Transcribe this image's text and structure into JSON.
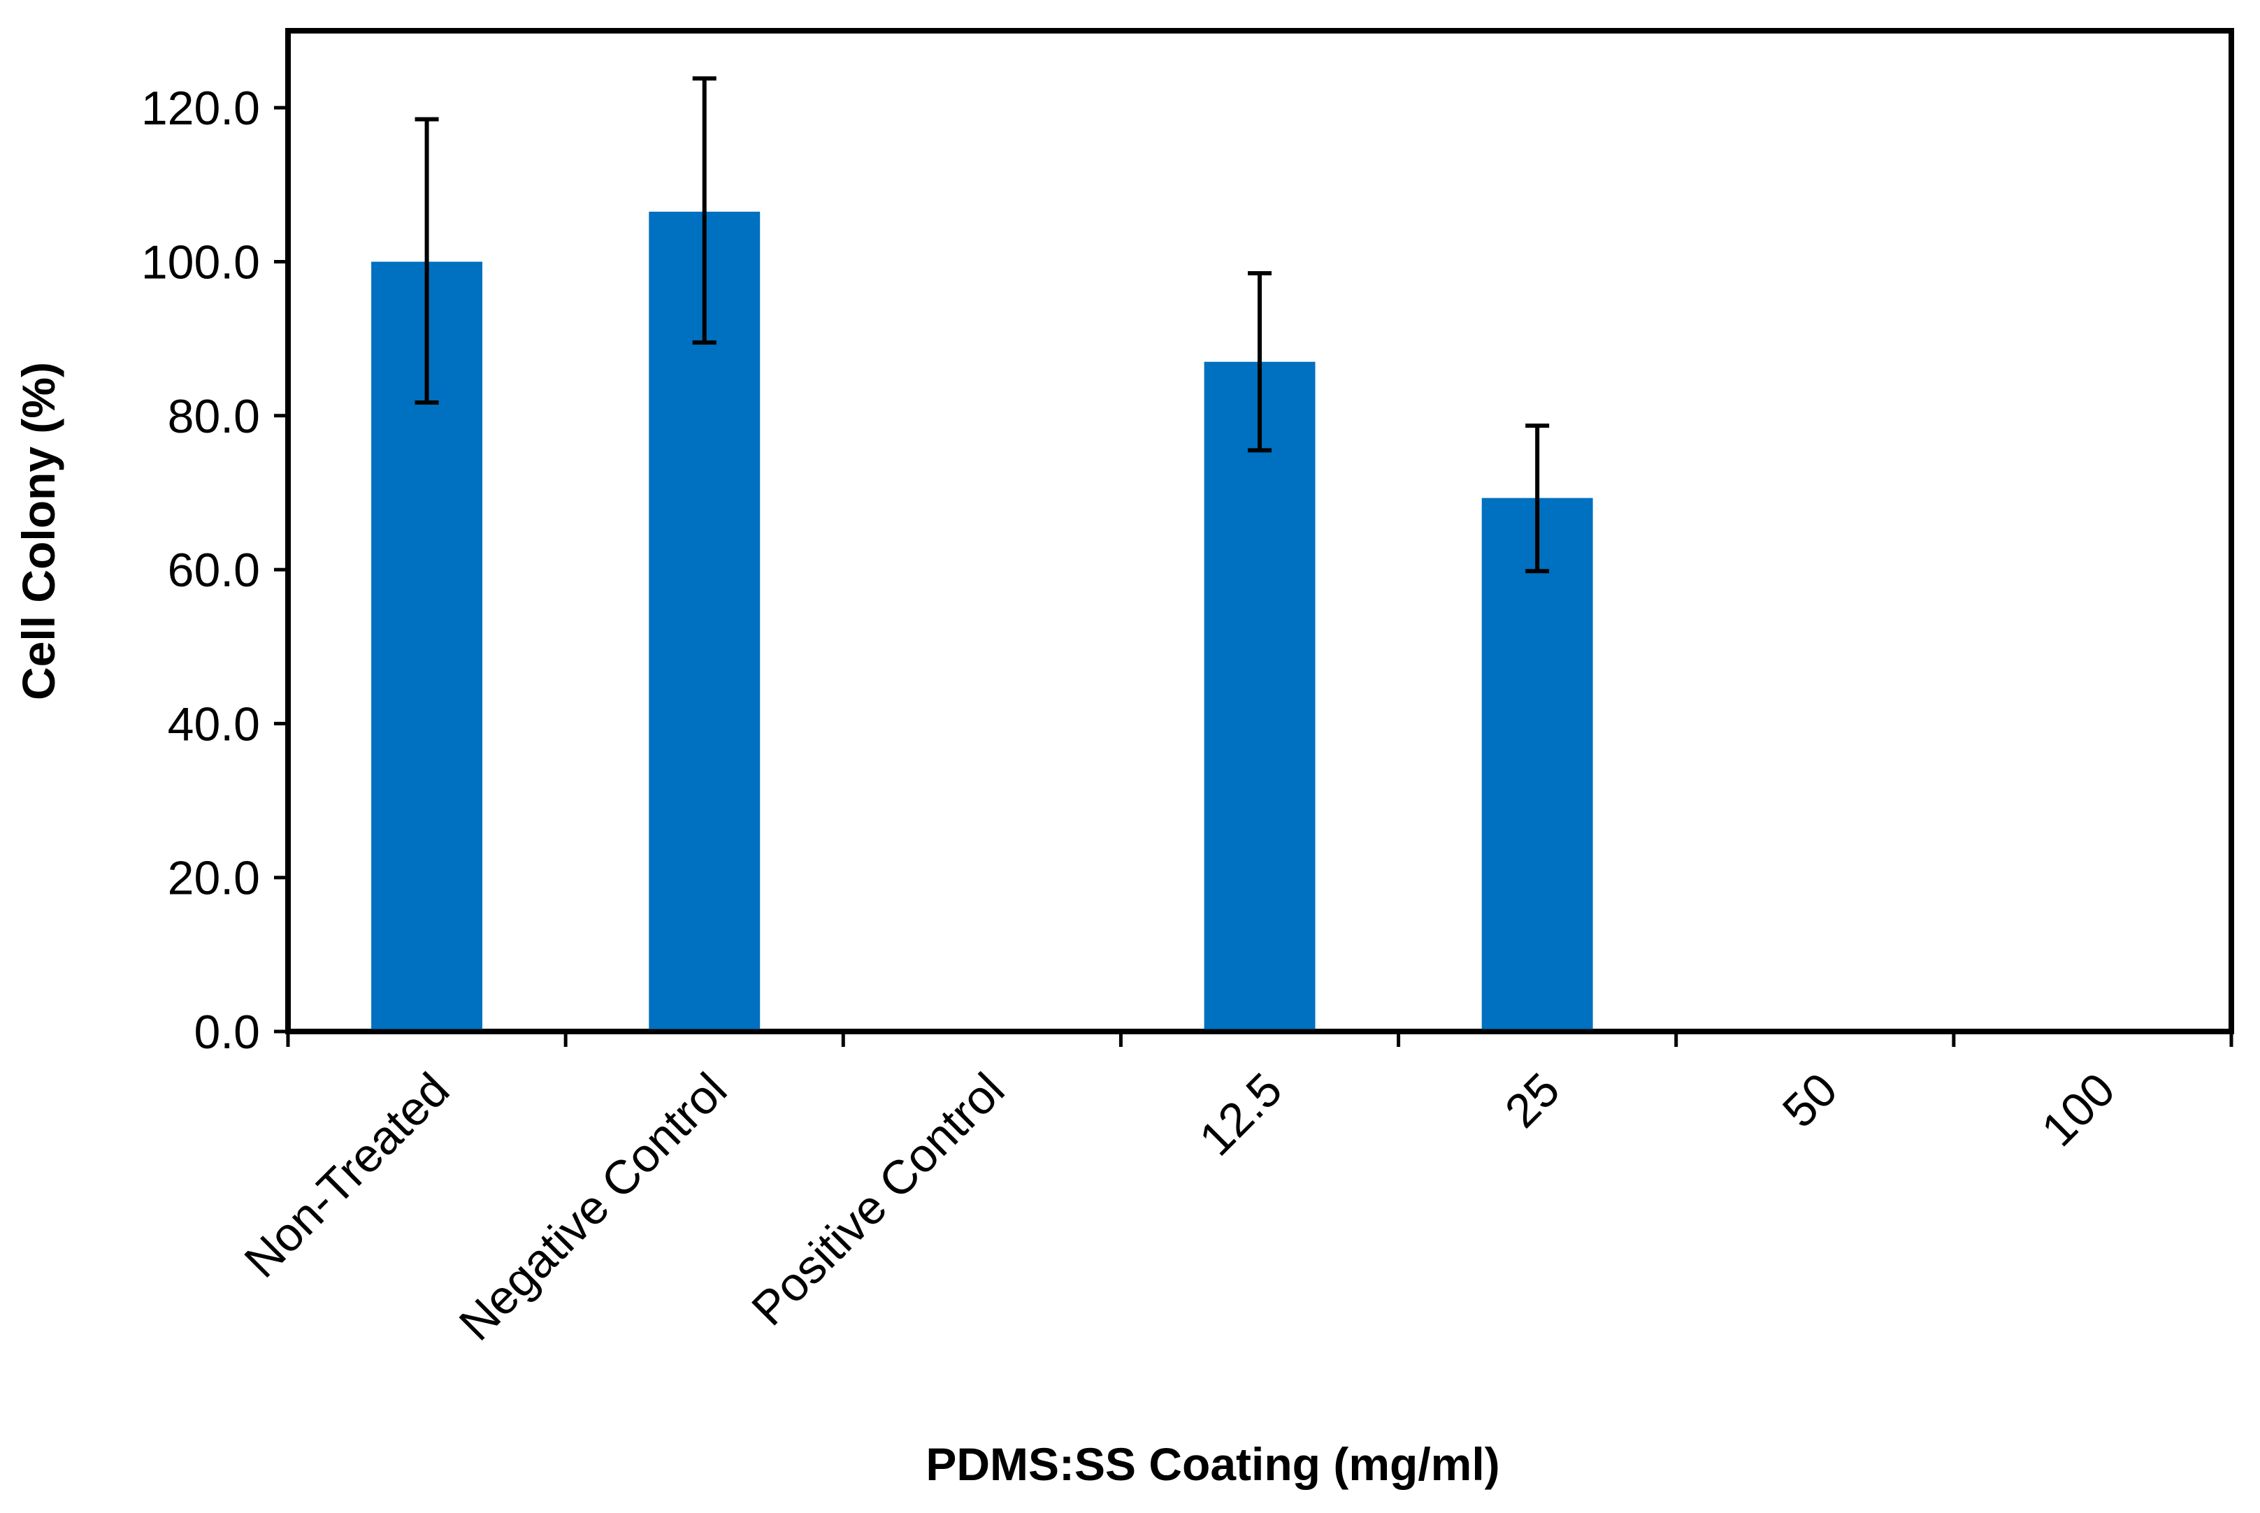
{
  "chart_data": {
    "type": "bar",
    "title": "",
    "xlabel": "PDMS:SS Coating (mg/ml)",
    "ylabel": "Cell Colony (%)",
    "ylim": [
      0,
      130
    ],
    "yticks": [
      0,
      20,
      40,
      60,
      80,
      100,
      120
    ],
    "ytick_labels": [
      "0.0",
      "20.0",
      "40.0",
      "60.0",
      "80.0",
      "100.0",
      "120.0"
    ],
    "categories": [
      "Non-Treated",
      "Negative  Control",
      "Positive Control",
      "12.5",
      "25",
      "50",
      "100"
    ],
    "series": [
      {
        "name": "Cell Colony (%)",
        "color": "#0070c0",
        "values": [
          100.0,
          106.5,
          0,
          87.0,
          69.3,
          0,
          0
        ],
        "error_low": [
          81.7,
          89.5,
          null,
          75.5,
          59.8,
          null,
          null
        ],
        "error_high": [
          118.5,
          123.8,
          null,
          98.5,
          78.7,
          null,
          null
        ]
      }
    ],
    "grid": false,
    "legend": "none"
  }
}
